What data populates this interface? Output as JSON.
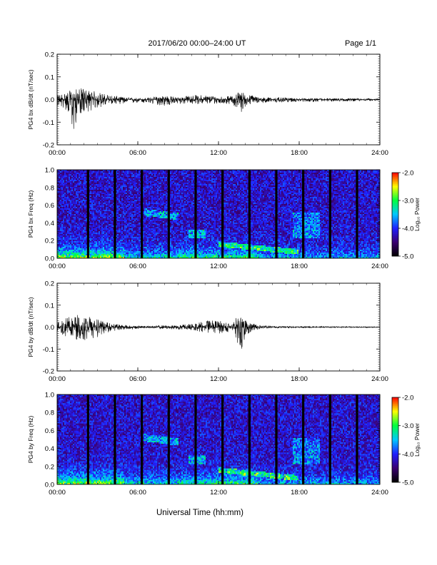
{
  "header": {
    "title": "2017/06/20  00:00–24:00 UT",
    "page": "Page 1/1"
  },
  "chart_data": [
    {
      "type": "line",
      "ylabel": "PG4 bx dB/dt (nT/sec)",
      "x_ticks": [
        "00:00",
        "06:00",
        "12:00",
        "18:00",
        "24:00"
      ],
      "xlim": [
        0,
        24
      ],
      "ylim": [
        -0.2,
        0.2
      ],
      "y_ticks": [
        "0.2",
        "0.1",
        "0.0",
        "-0.1",
        "-0.2"
      ],
      "envelope": {
        "x": [
          0,
          0.5,
          1,
          1.1,
          1.5,
          2,
          2.5,
          3,
          3.5,
          4,
          5,
          6,
          7,
          8,
          9,
          10,
          11,
          12,
          13,
          13.7,
          14,
          14.5,
          15,
          16,
          18,
          20,
          22,
          24
        ],
        "y_max": [
          0.02,
          0.03,
          0.04,
          0.03,
          0.05,
          0.05,
          0.04,
          0.035,
          0.025,
          0.02,
          0.01,
          0.005,
          0.01,
          0.02,
          0.01,
          0.02,
          0.02,
          0.015,
          0.015,
          0.045,
          0.02,
          0.02,
          0.01,
          0.01,
          0.005,
          0.005,
          0.005,
          0.003
        ],
        "y_min": [
          -0.03,
          -0.04,
          -0.07,
          -0.2,
          -0.07,
          -0.06,
          -0.05,
          -0.04,
          -0.03,
          -0.02,
          -0.02,
          -0.015,
          -0.02,
          -0.03,
          -0.02,
          -0.02,
          -0.02,
          -0.02,
          -0.02,
          -0.06,
          -0.03,
          -0.02,
          -0.015,
          -0.015,
          -0.01,
          -0.01,
          -0.008,
          -0.005
        ]
      }
    },
    {
      "type": "heatmap",
      "ylabel": "PG4 bx Freq (Hz)",
      "x_ticks": [
        "00:00",
        "06:00",
        "12:00",
        "18:00",
        "24:00"
      ],
      "xlim": [
        0,
        24
      ],
      "ylim": [
        0,
        1
      ],
      "y_ticks": [
        "1.0",
        "0.8",
        "0.6",
        "0.4",
        "0.2",
        "0.0"
      ],
      "colorbar": {
        "label": "Log₁₀ Power",
        "ticks": [
          "-2.0",
          "-3.0",
          "-4.0",
          "-5.0"
        ],
        "range": [
          -5,
          -2
        ],
        "colors": [
          "#000000",
          "#3a0070",
          "#2020ff",
          "#00c8ff",
          "#00ff40",
          "#ffff00",
          "#ff0000"
        ]
      },
      "gap_hours": [
        2.3,
        4.3,
        6.3,
        8.3,
        10.3,
        12.3,
        14.3,
        16.3,
        18.3,
        20.3,
        22.3
      ]
    },
    {
      "type": "line",
      "ylabel": "PG4 by dB/dt (nT/sec)",
      "x_ticks": [
        "00:00",
        "06:00",
        "12:00",
        "18:00",
        "24:00"
      ],
      "xlim": [
        0,
        24
      ],
      "ylim": [
        -0.2,
        0.2
      ],
      "y_ticks": [
        "0.2",
        "0.1",
        "0.0",
        "-0.1",
        "-0.2"
      ],
      "envelope": {
        "x": [
          0,
          0.5,
          1,
          1.5,
          2,
          2.5,
          3,
          3.5,
          4,
          5,
          6,
          7,
          8,
          9,
          10,
          11,
          12,
          13,
          13.7,
          14,
          14.5,
          15,
          16,
          18,
          20,
          22,
          24
        ],
        "y_max": [
          0.02,
          0.04,
          0.05,
          0.06,
          0.05,
          0.05,
          0.04,
          0.03,
          0.02,
          0.01,
          0.005,
          0.005,
          0.01,
          0.01,
          0.015,
          0.03,
          0.03,
          0.02,
          0.07,
          0.03,
          0.02,
          0.01,
          0.005,
          0.003,
          0.003,
          0.003,
          0.002
        ],
        "y_min": [
          -0.02,
          -0.04,
          -0.05,
          -0.06,
          -0.06,
          -0.07,
          -0.05,
          -0.03,
          -0.02,
          -0.015,
          -0.008,
          -0.005,
          -0.01,
          -0.01,
          -0.015,
          -0.025,
          -0.03,
          -0.02,
          -0.11,
          -0.04,
          -0.02,
          -0.01,
          -0.005,
          -0.003,
          -0.003,
          -0.003,
          -0.002
        ]
      }
    },
    {
      "type": "heatmap",
      "ylabel": "PG4 by Freq (Hz)",
      "x_ticks": [
        "00:00",
        "06:00",
        "12:00",
        "18:00",
        "24:00"
      ],
      "xlim": [
        0,
        24
      ],
      "ylim": [
        0,
        1
      ],
      "y_ticks": [
        "1.0",
        "0.8",
        "0.6",
        "0.4",
        "0.2",
        "0.0"
      ],
      "colorbar": {
        "label": "Log₁₀ Power",
        "ticks": [
          "-2.0",
          "-3.0",
          "-4.0",
          "-5.0"
        ],
        "range": [
          -5,
          -2
        ],
        "colors": [
          "#000000",
          "#3a0070",
          "#2020ff",
          "#00c8ff",
          "#00ff40",
          "#ffff00",
          "#ff0000"
        ]
      },
      "gap_hours": [
        2.3,
        4.3,
        6.3,
        8.3,
        10.3,
        12.3,
        14.3,
        16.3,
        18.3,
        20.3,
        22.3
      ]
    }
  ],
  "xlabel": "Universal Time (hh:mm)"
}
